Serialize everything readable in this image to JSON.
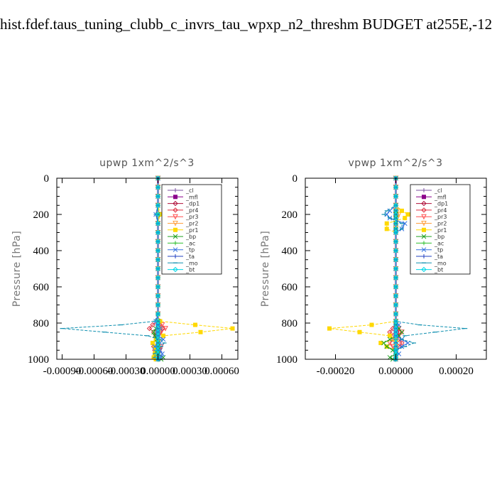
{
  "title": "hist.fdef.taus_tuning_clubb_c_invrs_tau_wpxp_n2_threshm  BUDGET at255E,-12",
  "legend": [
    {
      "label": "_cl",
      "color": "#7b4fa0",
      "marker": "plus"
    },
    {
      "label": "_mfl",
      "color": "#8b008b",
      "marker": "square"
    },
    {
      "label": "_dp1",
      "color": "#b0103a",
      "marker": "diamond"
    },
    {
      "label": "_pr4",
      "color": "#e03040",
      "marker": "diamond"
    },
    {
      "label": "_pr3",
      "color": "#ff5050",
      "marker": "triangle"
    },
    {
      "label": "_pr2",
      "color": "#ffa040",
      "marker": "triangle"
    },
    {
      "label": "_pr1",
      "color": "#ffd800",
      "marker": "square"
    },
    {
      "label": "_bp",
      "color": "#20a020",
      "marker": "x"
    },
    {
      "label": "_ac",
      "color": "#30c030",
      "marker": "plus"
    },
    {
      "label": "_tp",
      "color": "#3070e0",
      "marker": "x"
    },
    {
      "label": "_ta",
      "color": "#2040c0",
      "marker": "plus"
    },
    {
      "label": "_mo",
      "color": "#1090b0",
      "marker": "dash"
    },
    {
      "label": "_bt",
      "color": "#00d8e8",
      "marker": "diamond"
    }
  ],
  "chart_data": [
    {
      "type": "line",
      "title": "upwp   1xm^2/s^3",
      "ylabel": "Pressure [hPa]",
      "xlabel": "",
      "xlim": [
        -0.00095,
        0.00075
      ],
      "ylim": [
        1000,
        0
      ],
      "x_ticks": [
        -0.0009,
        -0.0006,
        -0.0003,
        0.0,
        0.0003,
        0.0006
      ],
      "x_tick_labels": [
        "-0.00090",
        "-0.00060",
        "-0.00030",
        "0.00000",
        "0.00030",
        "0.00060"
      ],
      "y_ticks": [
        0,
        200,
        400,
        600,
        800,
        1000
      ],
      "y_tick_labels": [
        "0",
        "200",
        "400",
        "600",
        "800",
        "1000"
      ],
      "y": [
        0,
        50,
        100,
        150,
        200,
        250,
        300,
        350,
        400,
        450,
        500,
        550,
        600,
        650,
        700,
        750,
        790,
        810,
        830,
        850,
        870,
        890,
        910,
        930,
        950,
        970,
        990,
        1000
      ],
      "series": [
        {
          "name": "_cl",
          "values": [
            0,
            0,
            0,
            0,
            0,
            0,
            0,
            0,
            0,
            0,
            0,
            0,
            0,
            0,
            0,
            0,
            0,
            0,
            0,
            0,
            0,
            0,
            0,
            0,
            0,
            0,
            0,
            0
          ]
        },
        {
          "name": "_mfl",
          "values": [
            0,
            0,
            0,
            0,
            0,
            0,
            0,
            0,
            0,
            0,
            0,
            0,
            0,
            0,
            0,
            0,
            0,
            0,
            0,
            0,
            0,
            0,
            0,
            0,
            0,
            0,
            0,
            0
          ]
        },
        {
          "name": "_dp1",
          "values": [
            0,
            0,
            0,
            0,
            0,
            0,
            0,
            0,
            0,
            0,
            0,
            0,
            0,
            0,
            0,
            0,
            0,
            2e-05,
            4e-05,
            2e-05,
            0,
            0,
            0,
            0,
            0,
            0,
            0,
            0
          ]
        },
        {
          "name": "_pr4",
          "values": [
            0,
            0,
            0,
            0,
            1e-05,
            0,
            0,
            0,
            0,
            0,
            0,
            0,
            0,
            0,
            0,
            0,
            0,
            -5e-05,
            -8e-05,
            -4e-05,
            -2e-05,
            0,
            0,
            -4e-05,
            -3e-05,
            0,
            0,
            0
          ]
        },
        {
          "name": "_pr3",
          "values": [
            0,
            0,
            0,
            0,
            1e-05,
            0,
            0,
            0,
            0,
            0,
            0,
            0,
            0,
            0,
            0,
            0,
            0,
            4e-05,
            7e-05,
            3e-05,
            1e-05,
            0,
            0,
            3e-05,
            2e-05,
            0,
            0,
            0
          ]
        },
        {
          "name": "_pr2",
          "values": [
            0,
            0,
            0,
            0,
            1e-05,
            0,
            0,
            0,
            0,
            0,
            0,
            0,
            0,
            0,
            0,
            0,
            0,
            1e-05,
            2e-05,
            1e-05,
            0,
            0,
            0,
            0,
            0,
            0,
            0,
            0
          ]
        },
        {
          "name": "_pr1",
          "values": [
            0,
            0,
            0,
            0,
            2e-05,
            0,
            0,
            0,
            0,
            0,
            0,
            0,
            0,
            0,
            0,
            0,
            2e-05,
            0.00035,
            0.0007,
            0.0004,
            5e-05,
            -2e-05,
            -5e-05,
            -3e-05,
            -2e-05,
            -3e-05,
            -4e-05,
            -2e-05
          ]
        },
        {
          "name": "_bp",
          "values": [
            0,
            0,
            0,
            0,
            0,
            0,
            0,
            0,
            0,
            0,
            0,
            0,
            0,
            0,
            0,
            0,
            0,
            0,
            -2e-05,
            -4e-05,
            -3e-05,
            -1e-05,
            0,
            0,
            0,
            0,
            5e-05,
            3e-05
          ]
        },
        {
          "name": "_ac",
          "values": [
            0,
            0,
            0,
            0,
            0,
            0,
            0,
            0,
            0,
            0,
            0,
            0,
            0,
            0,
            0,
            0,
            0,
            0,
            0,
            0,
            0,
            0,
            0,
            0,
            0,
            0,
            0,
            0
          ]
        },
        {
          "name": "_tp",
          "values": [
            0,
            0,
            0,
            0,
            -2e-05,
            0,
            0,
            0,
            0,
            0,
            0,
            0,
            0,
            0,
            0,
            0,
            -2e-05,
            0,
            2e-05,
            0,
            0,
            5e-05,
            2e-05,
            -3e-05,
            2e-05,
            4e-05,
            3e-05,
            0
          ]
        },
        {
          "name": "_ta",
          "values": [
            0,
            0,
            0,
            0,
            0,
            0,
            0,
            0,
            0,
            0,
            0,
            0,
            0,
            0,
            0,
            0,
            0,
            0,
            0,
            0,
            0,
            0,
            0,
            0,
            0,
            0,
            0,
            0
          ]
        },
        {
          "name": "_mo",
          "values": [
            0,
            0,
            0,
            0,
            -2e-05,
            0,
            0,
            0,
            0,
            0,
            0,
            0,
            0,
            0,
            0,
            0,
            -3e-05,
            -0.00035,
            -0.0009,
            -0.0005,
            -0.0001,
            2e-05,
            6e-05,
            3e-05,
            -2e-05,
            -3e-05,
            -3e-05,
            0
          ]
        },
        {
          "name": "_bt",
          "values": [
            0,
            0,
            0,
            0,
            0,
            0,
            0,
            0,
            0,
            0,
            0,
            0,
            0,
            0,
            0,
            0,
            0,
            0,
            0,
            0,
            0,
            0,
            0,
            0,
            0,
            0,
            0,
            0
          ]
        }
      ]
    },
    {
      "type": "line",
      "title": "vpwp   1xm^2/s^3",
      "ylabel": "Pressure [hPa]",
      "xlabel": "",
      "xlim": [
        -0.0003,
        0.0003
      ],
      "ylim": [
        1000,
        0
      ],
      "x_ticks": [
        -0.0002,
        0.0,
        0.0002
      ],
      "x_tick_labels": [
        "-0.00020",
        "0.00000",
        "0.00020"
      ],
      "y_ticks": [
        0,
        200,
        400,
        600,
        800,
        1000
      ],
      "y_tick_labels": [
        "0",
        "200",
        "400",
        "600",
        "800",
        "1000"
      ],
      "y": [
        0,
        50,
        100,
        150,
        180,
        200,
        220,
        250,
        280,
        300,
        350,
        400,
        450,
        500,
        550,
        600,
        650,
        700,
        750,
        790,
        810,
        830,
        850,
        870,
        890,
        910,
        930,
        950,
        970,
        990,
        1000
      ],
      "series": [
        {
          "name": "_cl",
          "values": [
            0,
            0,
            0,
            0,
            0,
            0,
            0,
            0,
            0,
            0,
            0,
            0,
            0,
            0,
            0,
            0,
            0,
            0,
            0,
            0,
            0,
            0,
            0,
            0,
            0,
            0,
            0,
            0,
            0,
            0,
            0
          ]
        },
        {
          "name": "_mfl",
          "values": [
            0,
            0,
            0,
            0,
            0,
            0,
            0,
            0,
            0,
            0,
            0,
            0,
            0,
            0,
            0,
            0,
            0,
            0,
            0,
            0,
            0,
            0,
            0,
            0,
            0,
            0,
            0,
            0,
            0,
            0,
            0
          ]
        },
        {
          "name": "_dp1",
          "values": [
            0,
            0,
            0,
            0,
            0,
            0,
            0,
            0,
            0,
            0,
            0,
            0,
            0,
            0,
            0,
            0,
            0,
            0,
            0,
            0,
            0,
            5e-06,
            1e-05,
            5e-06,
            0,
            0,
            0,
            0,
            0,
            0,
            0
          ]
        },
        {
          "name": "_pr4",
          "values": [
            0,
            0,
            0,
            0,
            0,
            0,
            0,
            0,
            0,
            0,
            0,
            0,
            0,
            0,
            0,
            0,
            0,
            0,
            0,
            0,
            0,
            -1e-05,
            -2e-05,
            -1e-05,
            1e-05,
            2e-05,
            1e-05,
            0,
            0,
            0,
            0
          ]
        },
        {
          "name": "_pr3",
          "values": [
            0,
            0,
            0,
            0,
            0,
            0,
            0,
            0,
            0,
            0,
            0,
            0,
            0,
            0,
            0,
            0,
            0,
            0,
            0,
            0,
            0,
            1e-05,
            2e-05,
            1e-05,
            -1e-05,
            -2e-05,
            -1e-05,
            0,
            0,
            0,
            0
          ]
        },
        {
          "name": "_pr2",
          "values": [
            0,
            0,
            0,
            0,
            5e-06,
            1e-05,
            5e-06,
            0,
            0,
            0,
            0,
            0,
            0,
            0,
            0,
            0,
            0,
            0,
            0,
            0,
            0,
            0,
            0,
            0,
            0,
            0,
            0,
            0,
            0,
            0,
            0
          ]
        },
        {
          "name": "_pr1",
          "values": [
            0,
            0,
            0,
            0,
            2e-05,
            4e-05,
            3e-05,
            -3e-05,
            -3e-05,
            0,
            0,
            0,
            0,
            0,
            0,
            0,
            0,
            0,
            0,
            0,
            -8e-05,
            -0.00022,
            -0.00012,
            -2e-05,
            0,
            -5e-05,
            -3e-05,
            0,
            0,
            0,
            0
          ]
        },
        {
          "name": "_bp",
          "values": [
            0,
            0,
            0,
            0,
            0,
            0,
            0,
            0,
            0,
            0,
            0,
            0,
            0,
            0,
            0,
            0,
            0,
            0,
            0,
            0,
            0,
            1e-05,
            2e-05,
            1e-05,
            -2e-05,
            -4e-05,
            -3e-05,
            -1e-05,
            0,
            -2e-05,
            -1e-05
          ]
        },
        {
          "name": "_ac",
          "values": [
            0,
            0,
            0,
            0,
            0,
            0,
            0,
            0,
            0,
            0,
            0,
            0,
            0,
            0,
            0,
            0,
            0,
            0,
            0,
            0,
            0,
            0,
            0,
            0,
            0,
            0,
            0,
            0,
            0,
            0,
            0
          ]
        },
        {
          "name": "_tp",
          "values": [
            0,
            0,
            0,
            0,
            -2e-05,
            -3e-05,
            -2e-05,
            3e-05,
            2e-05,
            0,
            0,
            0,
            0,
            0,
            0,
            0,
            0,
            0,
            0,
            0,
            1e-05,
            0,
            0,
            0,
            2e-05,
            4e-05,
            2e-05,
            0,
            1e-05,
            0,
            0
          ]
        },
        {
          "name": "_ta",
          "values": [
            0,
            0,
            0,
            0,
            0,
            0,
            0,
            0,
            0,
            0,
            0,
            0,
            0,
            0,
            0,
            0,
            0,
            0,
            0,
            0,
            0,
            0,
            0,
            0,
            0,
            0,
            0,
            0,
            0,
            0,
            0
          ]
        },
        {
          "name": "_mo",
          "values": [
            0,
            0,
            0,
            0,
            -3e-05,
            -4e-05,
            -2e-05,
            2e-05,
            2e-05,
            0,
            0,
            0,
            0,
            0,
            0,
            0,
            0,
            0,
            0,
            0,
            8e-05,
            0.00023,
            0.00013,
            3e-05,
            2e-05,
            6e-05,
            3e-05,
            0,
            0,
            0,
            0
          ]
        },
        {
          "name": "_bt",
          "values": [
            0,
            0,
            0,
            0,
            0,
            0,
            0,
            0,
            0,
            0,
            0,
            0,
            0,
            0,
            0,
            0,
            0,
            0,
            0,
            0,
            0,
            0,
            0,
            0,
            0,
            0,
            0,
            0,
            0,
            0,
            0
          ]
        }
      ]
    }
  ]
}
